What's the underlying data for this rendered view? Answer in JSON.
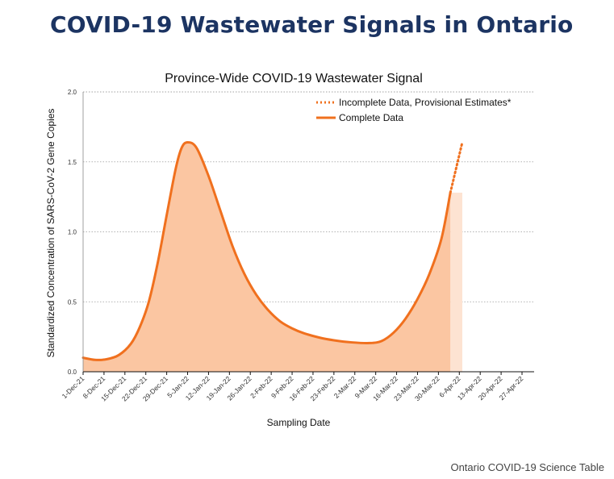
{
  "page": {
    "headline": "COVID-19 Wastewater Signals in Ontario",
    "credit": "Ontario COVID-19 Science Table"
  },
  "colors": {
    "headline": "#1c3462",
    "line": "#f0701e",
    "fill_complete": "#fbc6a2",
    "fill_provisional": "#fde3d2",
    "grid": "#9a9a9a"
  },
  "chart_data": {
    "type": "area",
    "title": "Province-Wide COVID-19 Wastewater Signal",
    "xlabel": "Sampling Date",
    "ylabel": "Standardized Concentration of SARS-CoV-2 Gene Copies",
    "ylim": [
      0,
      2.0
    ],
    "yticks": [
      "0.0",
      "0.5",
      "1.0",
      "1.5",
      "2.0"
    ],
    "xlim": [
      "2021-12-01",
      "2022-05-01"
    ],
    "xtick_dates": [
      "2021-12-01",
      "2021-12-08",
      "2021-12-15",
      "2021-12-22",
      "2021-12-29",
      "2022-01-05",
      "2022-01-12",
      "2022-01-19",
      "2022-01-26",
      "2022-02-02",
      "2022-02-09",
      "2022-02-16",
      "2022-02-23",
      "2022-03-02",
      "2022-03-09",
      "2022-03-16",
      "2022-03-23",
      "2022-03-30",
      "2022-04-06",
      "2022-04-13",
      "2022-04-20",
      "2022-04-27"
    ],
    "xtick_labels": [
      "1-Dec-21",
      "8-Dec-21",
      "15-Dec-21",
      "22-Dec-21",
      "29-Dec-21",
      "5-Jan-22",
      "12-Jan-22",
      "19-Jan-22",
      "26-Jan-22",
      "2-Feb-22",
      "9-Feb-22",
      "16-Feb-22",
      "23-Feb-22",
      "2-Mar-22",
      "9-Mar-22",
      "16-Mar-22",
      "23-Mar-22",
      "30-Mar-22",
      "6-Apr-22",
      "13-Apr-22",
      "20-Apr-22",
      "27-Apr-22"
    ],
    "grid": true,
    "legend_position": "top-right",
    "series": [
      {
        "name": "Complete Data",
        "style": "solid",
        "x": [
          "2021-12-01",
          "2021-12-05",
          "2021-12-09",
          "2021-12-13",
          "2021-12-17",
          "2021-12-20",
          "2021-12-23",
          "2021-12-26",
          "2021-12-29",
          "2022-01-01",
          "2022-01-03",
          "2022-01-05",
          "2022-01-08",
          "2022-01-12",
          "2022-01-16",
          "2022-01-20",
          "2022-01-24",
          "2022-01-28",
          "2022-02-01",
          "2022-02-05",
          "2022-02-09",
          "2022-02-13",
          "2022-02-18",
          "2022-02-23",
          "2022-03-01",
          "2022-03-07",
          "2022-03-11",
          "2022-03-15",
          "2022-03-19",
          "2022-03-23",
          "2022-03-27",
          "2022-03-31",
          "2022-04-03"
        ],
        "y": [
          0.1,
          0.085,
          0.09,
          0.12,
          0.2,
          0.32,
          0.5,
          0.78,
          1.12,
          1.45,
          1.6,
          1.64,
          1.6,
          1.4,
          1.15,
          0.9,
          0.7,
          0.55,
          0.44,
          0.36,
          0.31,
          0.275,
          0.245,
          0.225,
          0.21,
          0.205,
          0.22,
          0.28,
          0.38,
          0.52,
          0.7,
          0.95,
          1.28
        ]
      },
      {
        "name": "Incomplete Data, Provisional Estimates*",
        "style": "dotted",
        "x": [
          "2022-04-03",
          "2022-04-07"
        ],
        "y": [
          1.28,
          1.64
        ]
      }
    ]
  }
}
